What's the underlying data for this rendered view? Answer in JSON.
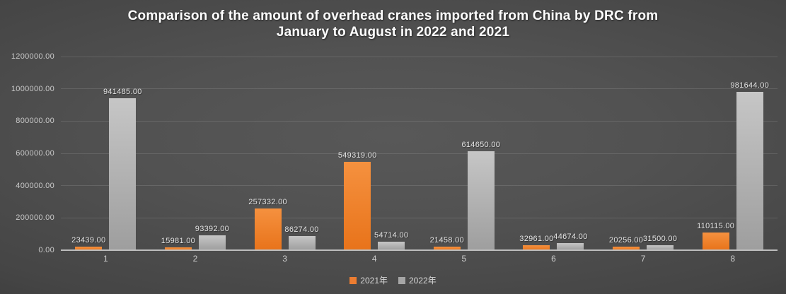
{
  "title_lines": [
    "Comparison of the amount of overhead cranes imported from China by DRC from",
    "January to August in 2022 and 2021"
  ],
  "chart_data": {
    "type": "bar",
    "title": "Comparison of the amount of overhead cranes imported from China by DRC from January to August in 2022 and 2021",
    "categories": [
      "1",
      "2",
      "3",
      "4",
      "5",
      "6",
      "7",
      "8"
    ],
    "series": [
      {
        "name": "2021年",
        "color": "#ED7D31",
        "color_top": "#F5913F",
        "color_bottom": "#E8731A",
        "values": [
          23439,
          15981,
          257332,
          549319,
          21458,
          32961,
          20256,
          110115
        ],
        "labels": [
          "23439.00",
          "15981.00",
          "257332.00",
          "549319.00",
          "21458.00",
          "32961.00",
          "20256.00",
          "110115.00"
        ]
      },
      {
        "name": "2022年",
        "color": "#A6A6A6",
        "color_top": "#C6C6C6",
        "color_bottom": "#9E9E9E",
        "values": [
          941485,
          93392,
          86274,
          54714,
          614650,
          44674,
          31500,
          981644
        ],
        "labels": [
          "941485.00",
          "93392.00",
          "86274.00",
          "54714.00",
          "614650.00",
          "44674.00",
          "31500.00",
          "981644.00"
        ]
      }
    ],
    "ylim": [
      0,
      1200000
    ],
    "ytick_interval": 200000,
    "yticks": [
      "1200000.00",
      "1000000.00",
      "800000.00",
      "600000.00",
      "400000.00",
      "200000.00",
      "0.00"
    ],
    "xlabel": "",
    "ylabel": "",
    "grid": true,
    "legend_position": "bottom",
    "background": "dark-gradient",
    "accent_colors": {
      "series_2021": "#ED7D31",
      "series_2022": "#A6A6A6"
    }
  }
}
